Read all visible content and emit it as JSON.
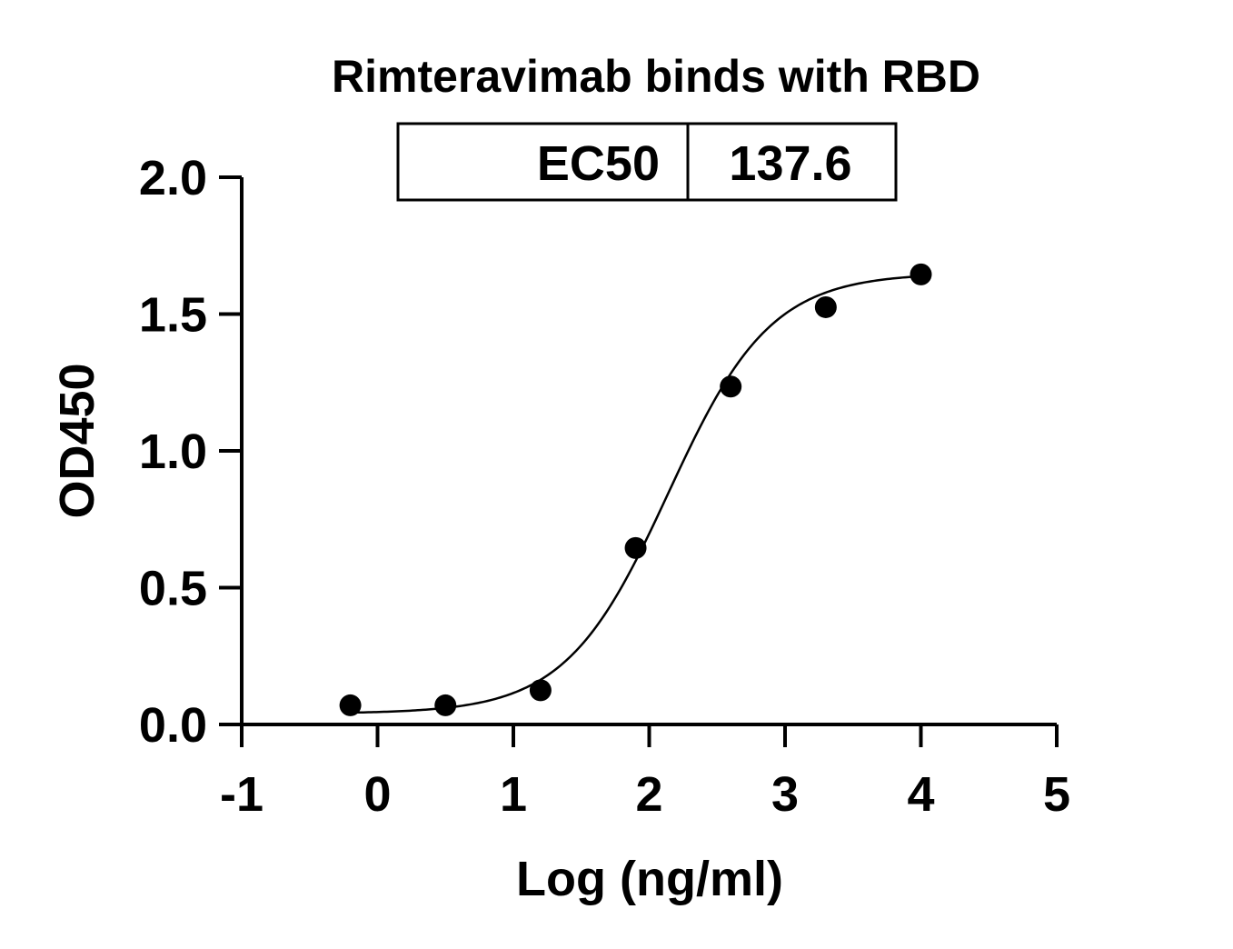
{
  "chart_data": {
    "type": "scatter",
    "title": "Rimteravimab binds with RBD",
    "xlabel": "Log (ng/ml)",
    "ylabel": "OD450",
    "xlim": [
      -1,
      5
    ],
    "ylim": [
      0,
      2.0
    ],
    "x_ticks": [
      -1,
      0,
      1,
      2,
      3,
      4,
      5
    ],
    "x_tick_labels": [
      "-1",
      "0",
      "1",
      "2",
      "3",
      "4",
      "5"
    ],
    "y_ticks": [
      0,
      0.5,
      1.0,
      1.5,
      2.0
    ],
    "y_tick_labels": [
      "0.0",
      "0.5",
      "1.0",
      "1.5",
      "2.0"
    ],
    "grid": false,
    "series": [
      {
        "x": [
          -0.2,
          0.5,
          1.2,
          1.9,
          2.6,
          3.3,
          4.0
        ],
        "y": [
          0.07,
          0.07,
          0.125,
          0.645,
          1.235,
          1.525,
          1.645
        ]
      }
    ],
    "fit_curve": {
      "model": "4PL",
      "bottom": 0.04,
      "top": 1.65,
      "log_ec50": 2.14,
      "hill_slope": 1.15
    },
    "stats_table": {
      "label": "EC50",
      "value": "137.6"
    }
  }
}
